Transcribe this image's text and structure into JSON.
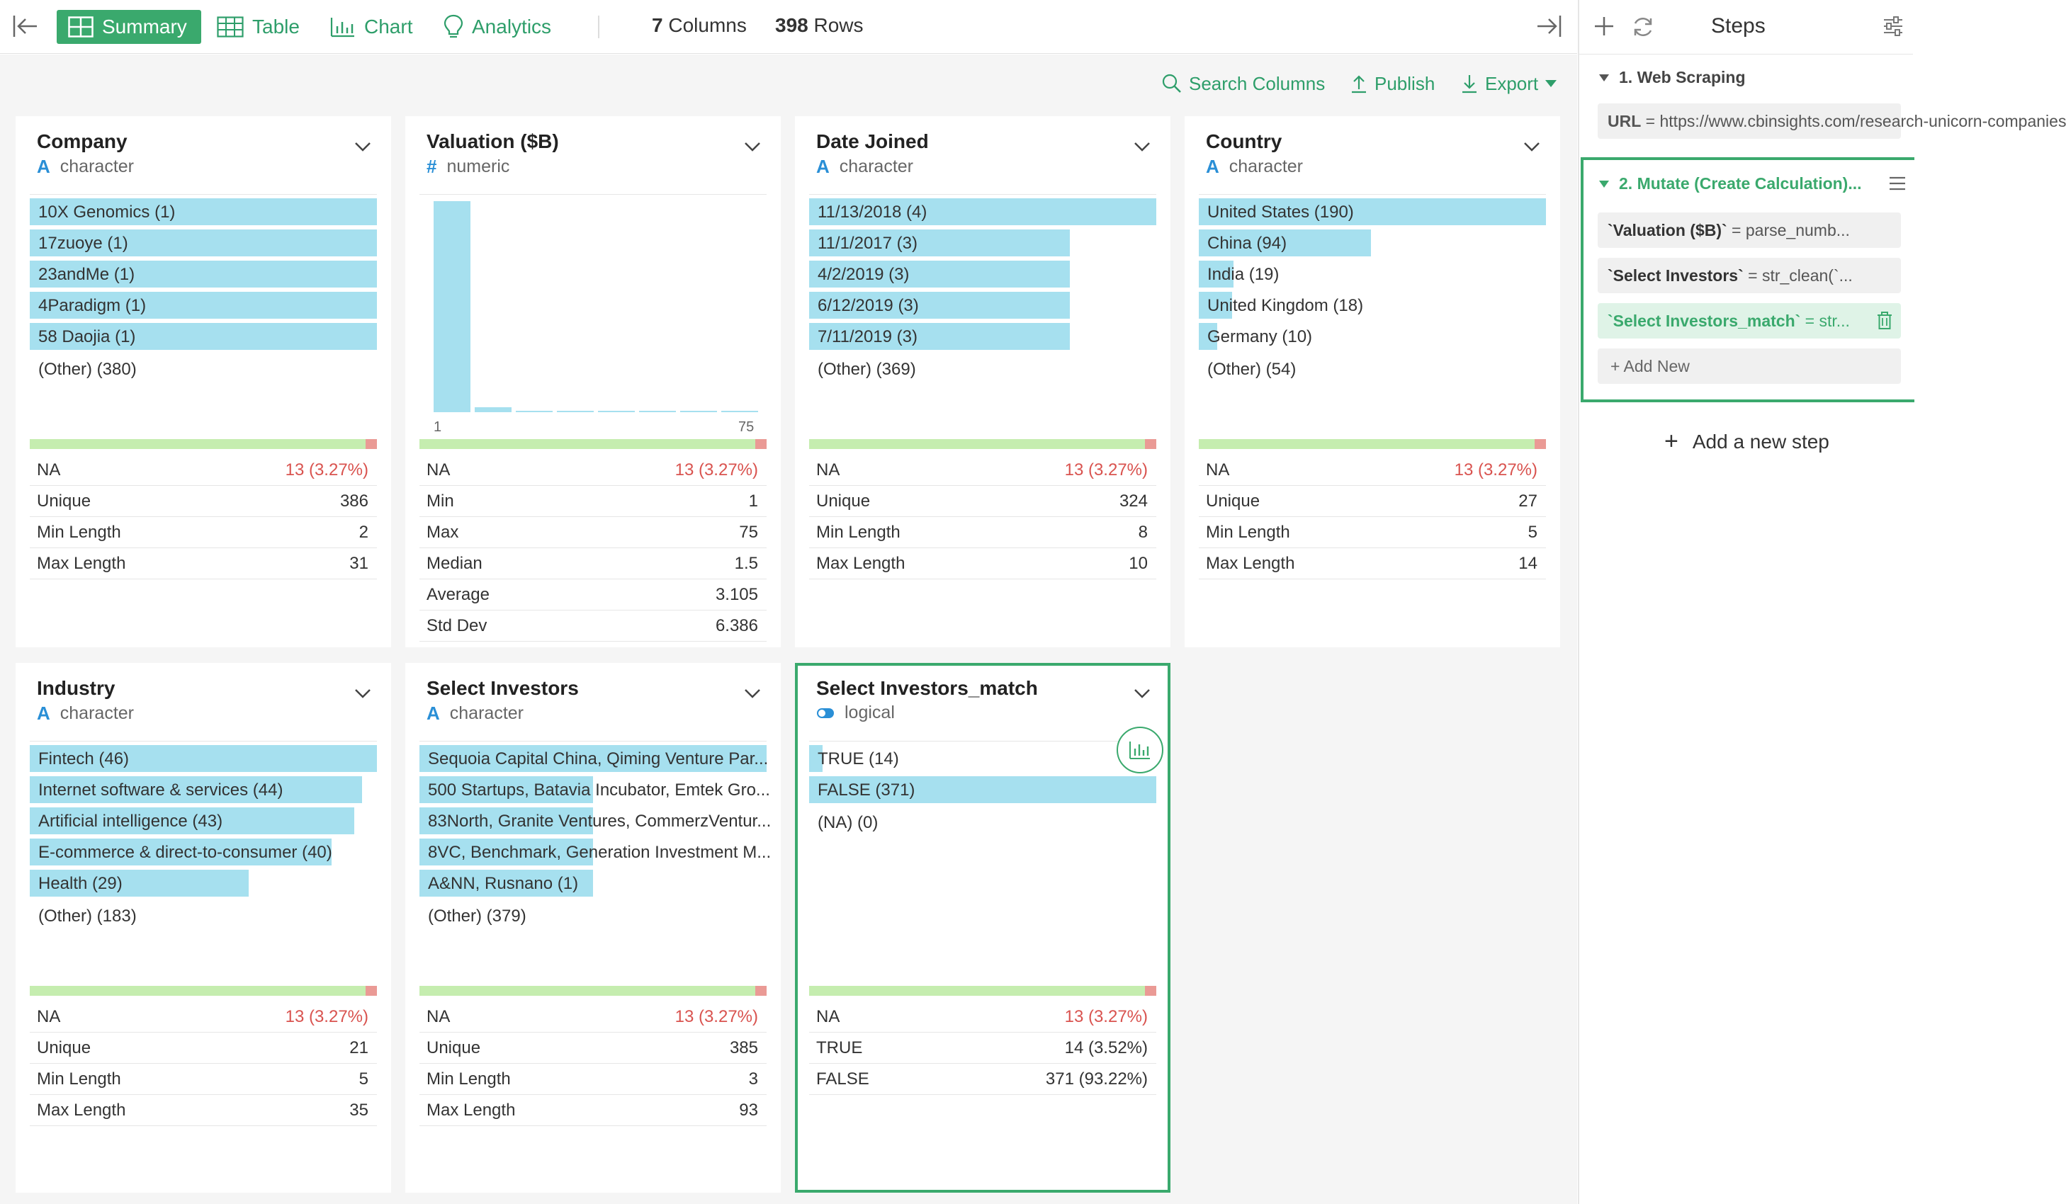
{
  "toolbar": {
    "summary": "Summary",
    "table": "Table",
    "chart": "Chart",
    "analytics": "Analytics",
    "columns_count": "7",
    "columns_label": "Columns",
    "rows_count": "398",
    "rows_label": "Rows"
  },
  "actions": {
    "search": "Search Columns",
    "publish": "Publish",
    "export": "Export"
  },
  "colors": {
    "accent": "#3aa96d",
    "bar": "#a6e0ef",
    "na_ok": "#c5edaf",
    "na_missing": "#ea9a95",
    "na_text": "#d9534f"
  },
  "cards": [
    {
      "title": "Company",
      "type": "character",
      "bars": [
        {
          "label": "10X Genomics (1)",
          "fraction": 1.0
        },
        {
          "label": "17zuoye (1)",
          "fraction": 1.0
        },
        {
          "label": "23andMe (1)",
          "fraction": 1.0
        },
        {
          "label": "4Paradigm (1)",
          "fraction": 1.0
        },
        {
          "label": "58 Daojia (1)",
          "fraction": 1.0
        }
      ],
      "other": "(Other) (380)",
      "na_fraction": 0.0327,
      "stats": [
        {
          "k": "NA",
          "v": "13 (3.27%)"
        },
        {
          "k": "Unique",
          "v": "386"
        },
        {
          "k": "Min Length",
          "v": "2"
        },
        {
          "k": "Max Length",
          "v": "31"
        }
      ]
    },
    {
      "title": "Valuation ($B)",
      "type": "numeric",
      "histogram": [
        1.0,
        0.024,
        0.006,
        0.006,
        0.006,
        0.006,
        0.006,
        0.006
      ],
      "hist_min": "1",
      "hist_max": "75",
      "na_fraction": 0.0327,
      "stats": [
        {
          "k": "NA",
          "v": "13 (3.27%)"
        },
        {
          "k": "Min",
          "v": "1"
        },
        {
          "k": "Max",
          "v": "75"
        },
        {
          "k": "Median",
          "v": "1.5"
        },
        {
          "k": "Average",
          "v": "3.105"
        },
        {
          "k": "Std Dev",
          "v": "6.386"
        }
      ]
    },
    {
      "title": "Date Joined",
      "type": "character",
      "bars": [
        {
          "label": "11/13/2018 (4)",
          "fraction": 1.0
        },
        {
          "label": "11/1/2017 (3)",
          "fraction": 0.75
        },
        {
          "label": "4/2/2019 (3)",
          "fraction": 0.75
        },
        {
          "label": "6/12/2019 (3)",
          "fraction": 0.75
        },
        {
          "label": "7/11/2019 (3)",
          "fraction": 0.75
        }
      ],
      "other": "(Other) (369)",
      "na_fraction": 0.0327,
      "stats": [
        {
          "k": "NA",
          "v": "13 (3.27%)"
        },
        {
          "k": "Unique",
          "v": "324"
        },
        {
          "k": "Min Length",
          "v": "8"
        },
        {
          "k": "Max Length",
          "v": "10"
        }
      ]
    },
    {
      "title": "Country",
      "type": "character",
      "bars": [
        {
          "label": "United States (190)",
          "fraction": 1.0
        },
        {
          "label": "China (94)",
          "fraction": 0.495
        },
        {
          "label": "India (19)",
          "fraction": 0.1
        },
        {
          "label": "United Kingdom (18)",
          "fraction": 0.095
        },
        {
          "label": "Germany (10)",
          "fraction": 0.053
        }
      ],
      "other": "(Other) (54)",
      "na_fraction": 0.0327,
      "stats": [
        {
          "k": "NA",
          "v": "13 (3.27%)"
        },
        {
          "k": "Unique",
          "v": "27"
        },
        {
          "k": "Min Length",
          "v": "5"
        },
        {
          "k": "Max Length",
          "v": "14"
        }
      ]
    },
    {
      "title": "Industry",
      "type": "character",
      "bars": [
        {
          "label": "Fintech (46)",
          "fraction": 1.0
        },
        {
          "label": "Internet software & services (44)",
          "fraction": 0.957
        },
        {
          "label": "Artificial intelligence (43)",
          "fraction": 0.935
        },
        {
          "label": "E-commerce & direct-to-consumer (40)",
          "fraction": 0.87
        },
        {
          "label": "Health (29)",
          "fraction": 0.63
        }
      ],
      "other": "(Other) (183)",
      "na_fraction": 0.0327,
      "stats": [
        {
          "k": "NA",
          "v": "13 (3.27%)"
        },
        {
          "k": "Unique",
          "v": "21"
        },
        {
          "k": "Min Length",
          "v": "5"
        },
        {
          "k": "Max Length",
          "v": "35"
        }
      ]
    },
    {
      "title": "Select Investors",
      "type": "character",
      "bars": [
        {
          "label": "Sequoia Capital China, Qiming Venture Par...",
          "fraction": 1.0
        },
        {
          "label": "500 Startups, Batavia Incubator, Emtek Gro...",
          "fraction": 0.5
        },
        {
          "label": "83North, Granite Ventures, CommerzVentur...",
          "fraction": 0.5
        },
        {
          "label": "8VC, Benchmark, Generation Investment M...",
          "fraction": 0.5
        },
        {
          "label": "A&NN, Rusnano (1)",
          "fraction": 0.5
        }
      ],
      "other": "(Other) (379)",
      "na_fraction": 0.0327,
      "stats": [
        {
          "k": "NA",
          "v": "13 (3.27%)"
        },
        {
          "k": "Unique",
          "v": "385"
        },
        {
          "k": "Min Length",
          "v": "3"
        },
        {
          "k": "Max Length",
          "v": "93"
        }
      ]
    },
    {
      "title": "Select Investors_match",
      "type": "logical",
      "bars": [
        {
          "label": "TRUE (14)",
          "fraction": 0.038
        },
        {
          "label": "FALSE (371)",
          "fraction": 1.0
        }
      ],
      "other": "(NA) (0)",
      "na_fraction": 0.0327,
      "stats": [
        {
          "k": "NA",
          "v": "13 (3.27%)"
        },
        {
          "k": "TRUE",
          "v": "14 (3.52%)"
        },
        {
          "k": "FALSE",
          "v": "371 (93.22%)"
        }
      ]
    }
  ],
  "steps": {
    "title": "Steps",
    "step1": {
      "title": "1. Web Scraping",
      "url_key": "URL",
      "url_value": " = https://www.cbinsights.com/research-unicorn-companies"
    },
    "step2": {
      "title": "2. Mutate (Create Calculation)...",
      "rows": [
        {
          "name": "`Valuation ($B)`",
          "expr": " = parse_numb..."
        },
        {
          "name": "`Select Investors`",
          "expr": " = str_clean(`..."
        },
        {
          "name": "`Select Investors_match`",
          "expr": " = str..."
        }
      ],
      "add_new": "+ Add New"
    },
    "add_step": "Add a new step"
  }
}
